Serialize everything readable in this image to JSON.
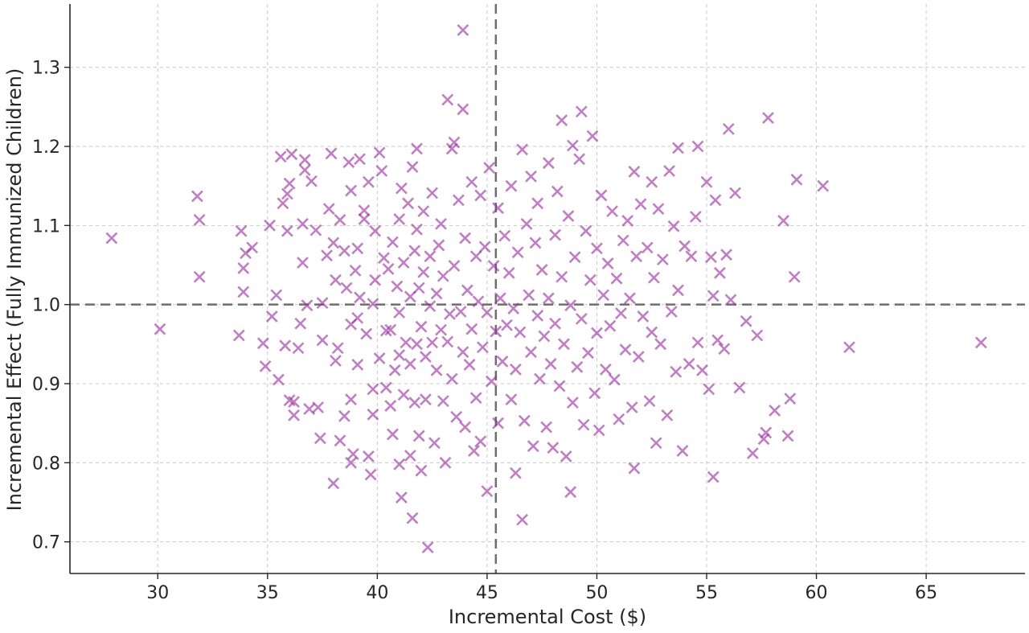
{
  "chart_data": {
    "type": "scatter",
    "title": "",
    "xlabel": "Incremental Cost ($)",
    "ylabel": "Incremental Effect (Fully Immunized Children)",
    "xlim": [
      26,
      69.5
    ],
    "ylim": [
      0.66,
      1.38
    ],
    "x_ticks": [
      30,
      35,
      40,
      45,
      50,
      55,
      60,
      65
    ],
    "y_ticks": [
      0.7,
      0.8,
      0.9,
      1.0,
      1.1,
      1.2,
      1.3
    ],
    "x_tick_labels": [
      "30",
      "35",
      "40",
      "45",
      "50",
      "55",
      "60",
      "65"
    ],
    "y_tick_labels": [
      "0.7",
      "0.8",
      "0.9",
      "1.0",
      "1.1",
      "1.2",
      "1.3"
    ],
    "grid": true,
    "marker": "x",
    "color": "#9B30A0",
    "reference_lines": {
      "x": 45.4,
      "y": 1.0
    },
    "series": [
      {
        "values": [
          [
            27.9,
            1.084
          ],
          [
            30.1,
            0.969
          ],
          [
            31.8,
            1.137
          ],
          [
            31.9,
            1.107
          ],
          [
            31.9,
            1.035
          ],
          [
            33.7,
            0.961
          ],
          [
            33.8,
            1.093
          ],
          [
            33.9,
            1.046
          ],
          [
            33.9,
            1.016
          ],
          [
            34.0,
            1.065
          ],
          [
            34.3,
            1.072
          ],
          [
            34.8,
            0.951
          ],
          [
            34.9,
            0.922
          ],
          [
            35.1,
            1.1
          ],
          [
            35.2,
            0.985
          ],
          [
            35.4,
            1.012
          ],
          [
            35.5,
            0.905
          ],
          [
            35.6,
            1.187
          ],
          [
            35.7,
            1.128
          ],
          [
            35.8,
            0.948
          ],
          [
            35.9,
            1.093
          ],
          [
            35.9,
            1.14
          ],
          [
            36.0,
            1.153
          ],
          [
            36.0,
            0.879
          ],
          [
            36.1,
            1.19
          ],
          [
            36.2,
            0.877
          ],
          [
            36.2,
            0.86
          ],
          [
            36.4,
            0.945
          ],
          [
            36.5,
            0.976
          ],
          [
            36.6,
            1.053
          ],
          [
            36.6,
            1.102
          ],
          [
            36.7,
            1.183
          ],
          [
            36.7,
            1.17
          ],
          [
            36.8,
            0.999
          ],
          [
            36.9,
            0.868
          ],
          [
            37.0,
            1.156
          ],
          [
            37.2,
            1.094
          ],
          [
            37.3,
            0.87
          ],
          [
            37.4,
            0.831
          ],
          [
            37.5,
            1.002
          ],
          [
            37.5,
            0.955
          ],
          [
            37.7,
            1.062
          ],
          [
            37.8,
            1.121
          ],
          [
            37.9,
            1.191
          ],
          [
            38.0,
            0.774
          ],
          [
            38.0,
            1.078
          ],
          [
            38.1,
            0.929
          ],
          [
            38.1,
            1.031
          ],
          [
            38.2,
            0.945
          ],
          [
            38.3,
            1.107
          ],
          [
            38.3,
            0.828
          ],
          [
            38.5,
            0.859
          ],
          [
            38.5,
            1.068
          ],
          [
            38.6,
            1.021
          ],
          [
            38.7,
            1.18
          ],
          [
            38.8,
            0.975
          ],
          [
            38.8,
            1.144
          ],
          [
            38.8,
            0.88
          ],
          [
            38.8,
            0.8
          ],
          [
            38.9,
            0.811
          ],
          [
            39.0,
            1.043
          ],
          [
            39.1,
            0.924
          ],
          [
            39.1,
            0.983
          ],
          [
            39.1,
            1.071
          ],
          [
            39.2,
            1.184
          ],
          [
            39.2,
            1.009
          ],
          [
            39.4,
            1.119
          ],
          [
            39.4,
            1.108
          ],
          [
            39.5,
            0.963
          ],
          [
            39.6,
            1.155
          ],
          [
            39.6,
            0.808
          ],
          [
            39.7,
            0.785
          ],
          [
            39.8,
            0.893
          ],
          [
            39.8,
            1.001
          ],
          [
            39.8,
            0.861
          ],
          [
            39.9,
            1.031
          ],
          [
            39.9,
            1.093
          ],
          [
            40.1,
            1.192
          ],
          [
            40.1,
            0.932
          ],
          [
            40.2,
            1.169
          ],
          [
            40.3,
            1.059
          ],
          [
            40.4,
            0.967
          ],
          [
            40.4,
            0.895
          ],
          [
            40.5,
            1.045
          ],
          [
            40.6,
            0.872
          ],
          [
            40.6,
            0.968
          ],
          [
            40.7,
            0.836
          ],
          [
            40.7,
            1.079
          ],
          [
            40.8,
            0.917
          ],
          [
            40.9,
            1.023
          ],
          [
            41.0,
            0.936
          ],
          [
            41.0,
            0.99
          ],
          [
            41.0,
            1.108
          ],
          [
            41.0,
            0.798
          ],
          [
            41.1,
            1.147
          ],
          [
            41.1,
            0.756
          ],
          [
            41.2,
            0.886
          ],
          [
            41.2,
            1.053
          ],
          [
            41.3,
            0.952
          ],
          [
            41.4,
            1.128
          ],
          [
            41.5,
            0.809
          ],
          [
            41.5,
            0.925
          ],
          [
            41.5,
            1.01
          ],
          [
            41.6,
            0.73
          ],
          [
            41.6,
            1.174
          ],
          [
            41.7,
            0.876
          ],
          [
            41.7,
            1.068
          ],
          [
            41.8,
            1.095
          ],
          [
            41.8,
            0.95
          ],
          [
            41.8,
            1.197
          ],
          [
            41.9,
            0.834
          ],
          [
            41.9,
            1.021
          ],
          [
            42.0,
            0.79
          ],
          [
            42.0,
            0.972
          ],
          [
            42.1,
            1.041
          ],
          [
            42.1,
            1.118
          ],
          [
            42.2,
            0.88
          ],
          [
            42.2,
            0.934
          ],
          [
            42.3,
            0.693
          ],
          [
            42.4,
            1.061
          ],
          [
            42.4,
            0.998
          ],
          [
            42.5,
            0.952
          ],
          [
            42.5,
            1.141
          ],
          [
            42.6,
            0.825
          ],
          [
            42.7,
            1.014
          ],
          [
            42.7,
            0.917
          ],
          [
            42.8,
            1.075
          ],
          [
            42.9,
            0.968
          ],
          [
            42.9,
            1.102
          ],
          [
            43.0,
            0.878
          ],
          [
            43.0,
            1.036
          ],
          [
            43.1,
            0.8
          ],
          [
            43.2,
            1.259
          ],
          [
            43.2,
            0.953
          ],
          [
            43.3,
            0.988
          ],
          [
            43.4,
            1.197
          ],
          [
            43.4,
            0.906
          ],
          [
            43.5,
            1.049
          ],
          [
            43.5,
            1.205
          ],
          [
            43.6,
            0.858
          ],
          [
            43.7,
            1.132
          ],
          [
            43.8,
            0.991
          ],
          [
            43.9,
            1.347
          ],
          [
            43.9,
            1.247
          ],
          [
            43.9,
            0.94
          ],
          [
            44.0,
            0.845
          ],
          [
            44.0,
            1.084
          ],
          [
            44.1,
            1.018
          ],
          [
            44.2,
            0.924
          ],
          [
            44.3,
            1.155
          ],
          [
            44.3,
            0.969
          ],
          [
            44.4,
            0.815
          ],
          [
            44.5,
            1.061
          ],
          [
            44.5,
            0.882
          ],
          [
            44.6,
            1.004
          ],
          [
            44.7,
            0.827
          ],
          [
            44.7,
            1.138
          ],
          [
            44.8,
            0.946
          ],
          [
            44.9,
            1.073
          ],
          [
            45.0,
            0.764
          ],
          [
            45.0,
            0.99
          ],
          [
            45.1,
            1.173
          ],
          [
            45.2,
            0.903
          ],
          [
            45.3,
            1.049
          ],
          [
            45.4,
            0.966
          ],
          [
            45.5,
            1.122
          ],
          [
            45.5,
            0.85
          ],
          [
            45.6,
            1.008
          ],
          [
            45.7,
            0.928
          ],
          [
            45.8,
            1.087
          ],
          [
            45.9,
            0.974
          ],
          [
            46.0,
            1.04
          ],
          [
            46.1,
            0.88
          ],
          [
            46.1,
            1.15
          ],
          [
            46.2,
            0.995
          ],
          [
            46.3,
            0.787
          ],
          [
            46.3,
            0.918
          ],
          [
            46.4,
            1.066
          ],
          [
            46.5,
            0.965
          ],
          [
            46.6,
            0.728
          ],
          [
            46.6,
            1.196
          ],
          [
            46.7,
            0.853
          ],
          [
            46.8,
            1.102
          ],
          [
            46.9,
            1.012
          ],
          [
            47.0,
            0.94
          ],
          [
            47.0,
            1.162
          ],
          [
            47.1,
            0.821
          ],
          [
            47.2,
            1.078
          ],
          [
            47.3,
            0.986
          ],
          [
            47.3,
            1.128
          ],
          [
            47.4,
            0.906
          ],
          [
            47.5,
            1.044
          ],
          [
            47.6,
            0.96
          ],
          [
            47.7,
            0.845
          ],
          [
            47.8,
            1.179
          ],
          [
            47.8,
            1.008
          ],
          [
            47.9,
            0.925
          ],
          [
            48.0,
            0.819
          ],
          [
            48.1,
            1.088
          ],
          [
            48.1,
            0.976
          ],
          [
            48.2,
            1.143
          ],
          [
            48.3,
            0.897
          ],
          [
            48.4,
            1.233
          ],
          [
            48.4,
            1.035
          ],
          [
            48.5,
            0.95
          ],
          [
            48.6,
            0.808
          ],
          [
            48.7,
            1.112
          ],
          [
            48.8,
            0.763
          ],
          [
            48.8,
            0.999
          ],
          [
            48.9,
            1.201
          ],
          [
            48.9,
            0.876
          ],
          [
            49.0,
            1.06
          ],
          [
            49.1,
            0.921
          ],
          [
            49.2,
            1.184
          ],
          [
            49.3,
            1.244
          ],
          [
            49.3,
            0.982
          ],
          [
            49.4,
            0.848
          ],
          [
            49.5,
            1.093
          ],
          [
            49.6,
            0.939
          ],
          [
            49.7,
            1.031
          ],
          [
            49.8,
            1.213
          ],
          [
            49.9,
            0.888
          ],
          [
            50.0,
            1.071
          ],
          [
            50.0,
            0.964
          ],
          [
            50.1,
            0.841
          ],
          [
            50.2,
            1.138
          ],
          [
            50.3,
            1.012
          ],
          [
            50.4,
            0.918
          ],
          [
            50.5,
            1.052
          ],
          [
            50.6,
            0.973
          ],
          [
            50.7,
            1.118
          ],
          [
            50.8,
            0.905
          ],
          [
            50.9,
            1.033
          ],
          [
            51.0,
            0.855
          ],
          [
            51.1,
            0.989
          ],
          [
            51.2,
            1.081
          ],
          [
            51.3,
            0.943
          ],
          [
            51.4,
            1.106
          ],
          [
            51.5,
            1.008
          ],
          [
            51.6,
            0.87
          ],
          [
            51.7,
            1.168
          ],
          [
            51.7,
            0.793
          ],
          [
            51.8,
            1.061
          ],
          [
            51.9,
            0.934
          ],
          [
            52.0,
            1.127
          ],
          [
            52.1,
            0.985
          ],
          [
            52.3,
            1.072
          ],
          [
            52.4,
            0.878
          ],
          [
            52.5,
            1.155
          ],
          [
            52.5,
            0.965
          ],
          [
            52.6,
            1.034
          ],
          [
            52.7,
            0.825
          ],
          [
            52.8,
            1.121
          ],
          [
            52.9,
            0.95
          ],
          [
            53.0,
            1.057
          ],
          [
            53.2,
            0.86
          ],
          [
            53.3,
            1.169
          ],
          [
            53.4,
            0.991
          ],
          [
            53.5,
            1.099
          ],
          [
            53.6,
            0.915
          ],
          [
            53.7,
            1.198
          ],
          [
            53.7,
            1.018
          ],
          [
            53.9,
            0.815
          ],
          [
            54.0,
            1.074
          ],
          [
            54.2,
            0.925
          ],
          [
            54.3,
            1.061
          ],
          [
            54.5,
            1.111
          ],
          [
            54.6,
            1.2
          ],
          [
            54.6,
            0.952
          ],
          [
            54.8,
            0.917
          ],
          [
            55.0,
            1.155
          ],
          [
            55.1,
            0.893
          ],
          [
            55.2,
            1.06
          ],
          [
            55.3,
            0.782
          ],
          [
            55.3,
            1.011
          ],
          [
            55.4,
            1.132
          ],
          [
            55.5,
            0.955
          ],
          [
            55.6,
            1.04
          ],
          [
            55.8,
            0.944
          ],
          [
            55.9,
            1.063
          ],
          [
            56.0,
            1.222
          ],
          [
            56.1,
            1.006
          ],
          [
            56.3,
            1.141
          ],
          [
            56.5,
            0.895
          ],
          [
            56.8,
            0.979
          ],
          [
            57.1,
            0.812
          ],
          [
            57.3,
            0.961
          ],
          [
            57.6,
            0.83
          ],
          [
            57.7,
            0.838
          ],
          [
            57.8,
            1.236
          ],
          [
            58.1,
            0.866
          ],
          [
            58.5,
            1.106
          ],
          [
            58.7,
            0.834
          ],
          [
            58.8,
            0.881
          ],
          [
            59.0,
            1.035
          ],
          [
            59.1,
            1.158
          ],
          [
            60.3,
            1.15
          ],
          [
            61.5,
            0.946
          ],
          [
            67.5,
            0.952
          ]
        ]
      }
    ]
  }
}
